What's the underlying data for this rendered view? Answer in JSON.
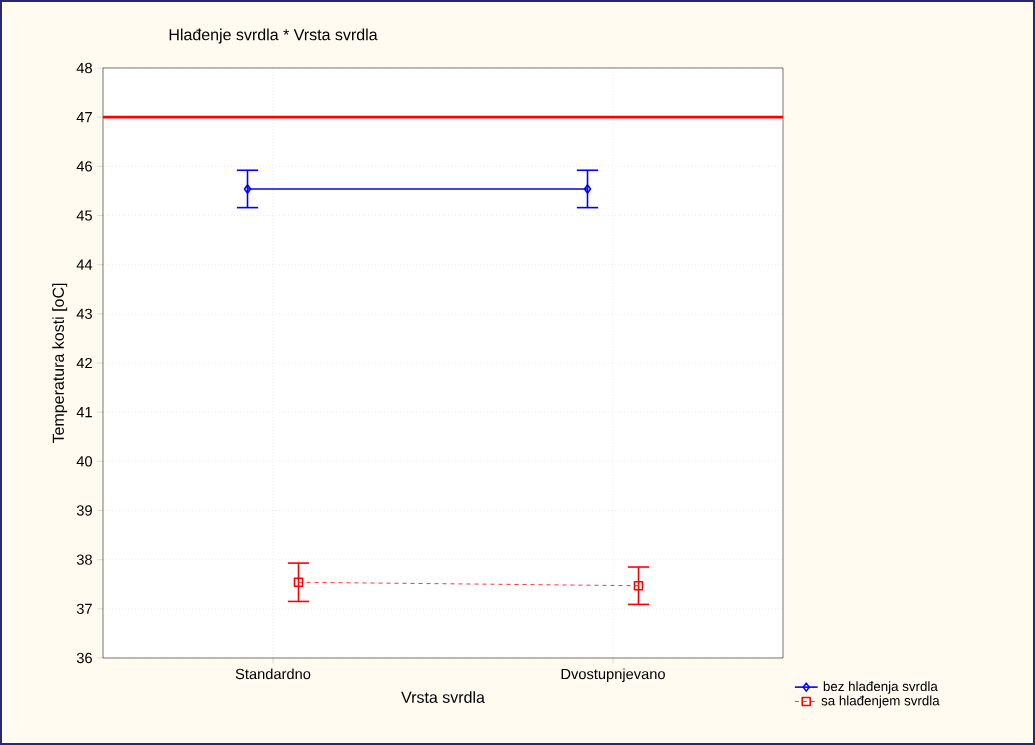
{
  "chart_data": {
    "type": "line",
    "title": "Hlađenje svrdla * Vrsta svrdla",
    "xlabel": "Vrsta svrdla",
    "ylabel": "Temperatura kosti [oC]",
    "categories": [
      "Standardno",
      "Dvostupnjevano"
    ],
    "series": [
      {
        "name": "bez hlađenja svrdla",
        "color": "#0000ff",
        "marker": "diamond",
        "line_style": "solid",
        "values": [
          45.54,
          45.54
        ],
        "errors": [
          0.38,
          0.38
        ]
      },
      {
        "name": "sa hlađenjem svrdla",
        "color": "#ff0000",
        "marker": "square",
        "line_style": "dashed",
        "values": [
          37.54,
          37.47
        ],
        "errors": [
          0.39,
          0.38
        ]
      }
    ],
    "ylim": [
      36,
      48
    ],
    "yticks": [
      36,
      37,
      38,
      39,
      40,
      41,
      42,
      43,
      44,
      45,
      46,
      47,
      48
    ],
    "ref_lines": [
      {
        "axis": "y",
        "value": 47,
        "color": "#ff0000"
      }
    ],
    "grid": true,
    "legend": "bottom right"
  }
}
